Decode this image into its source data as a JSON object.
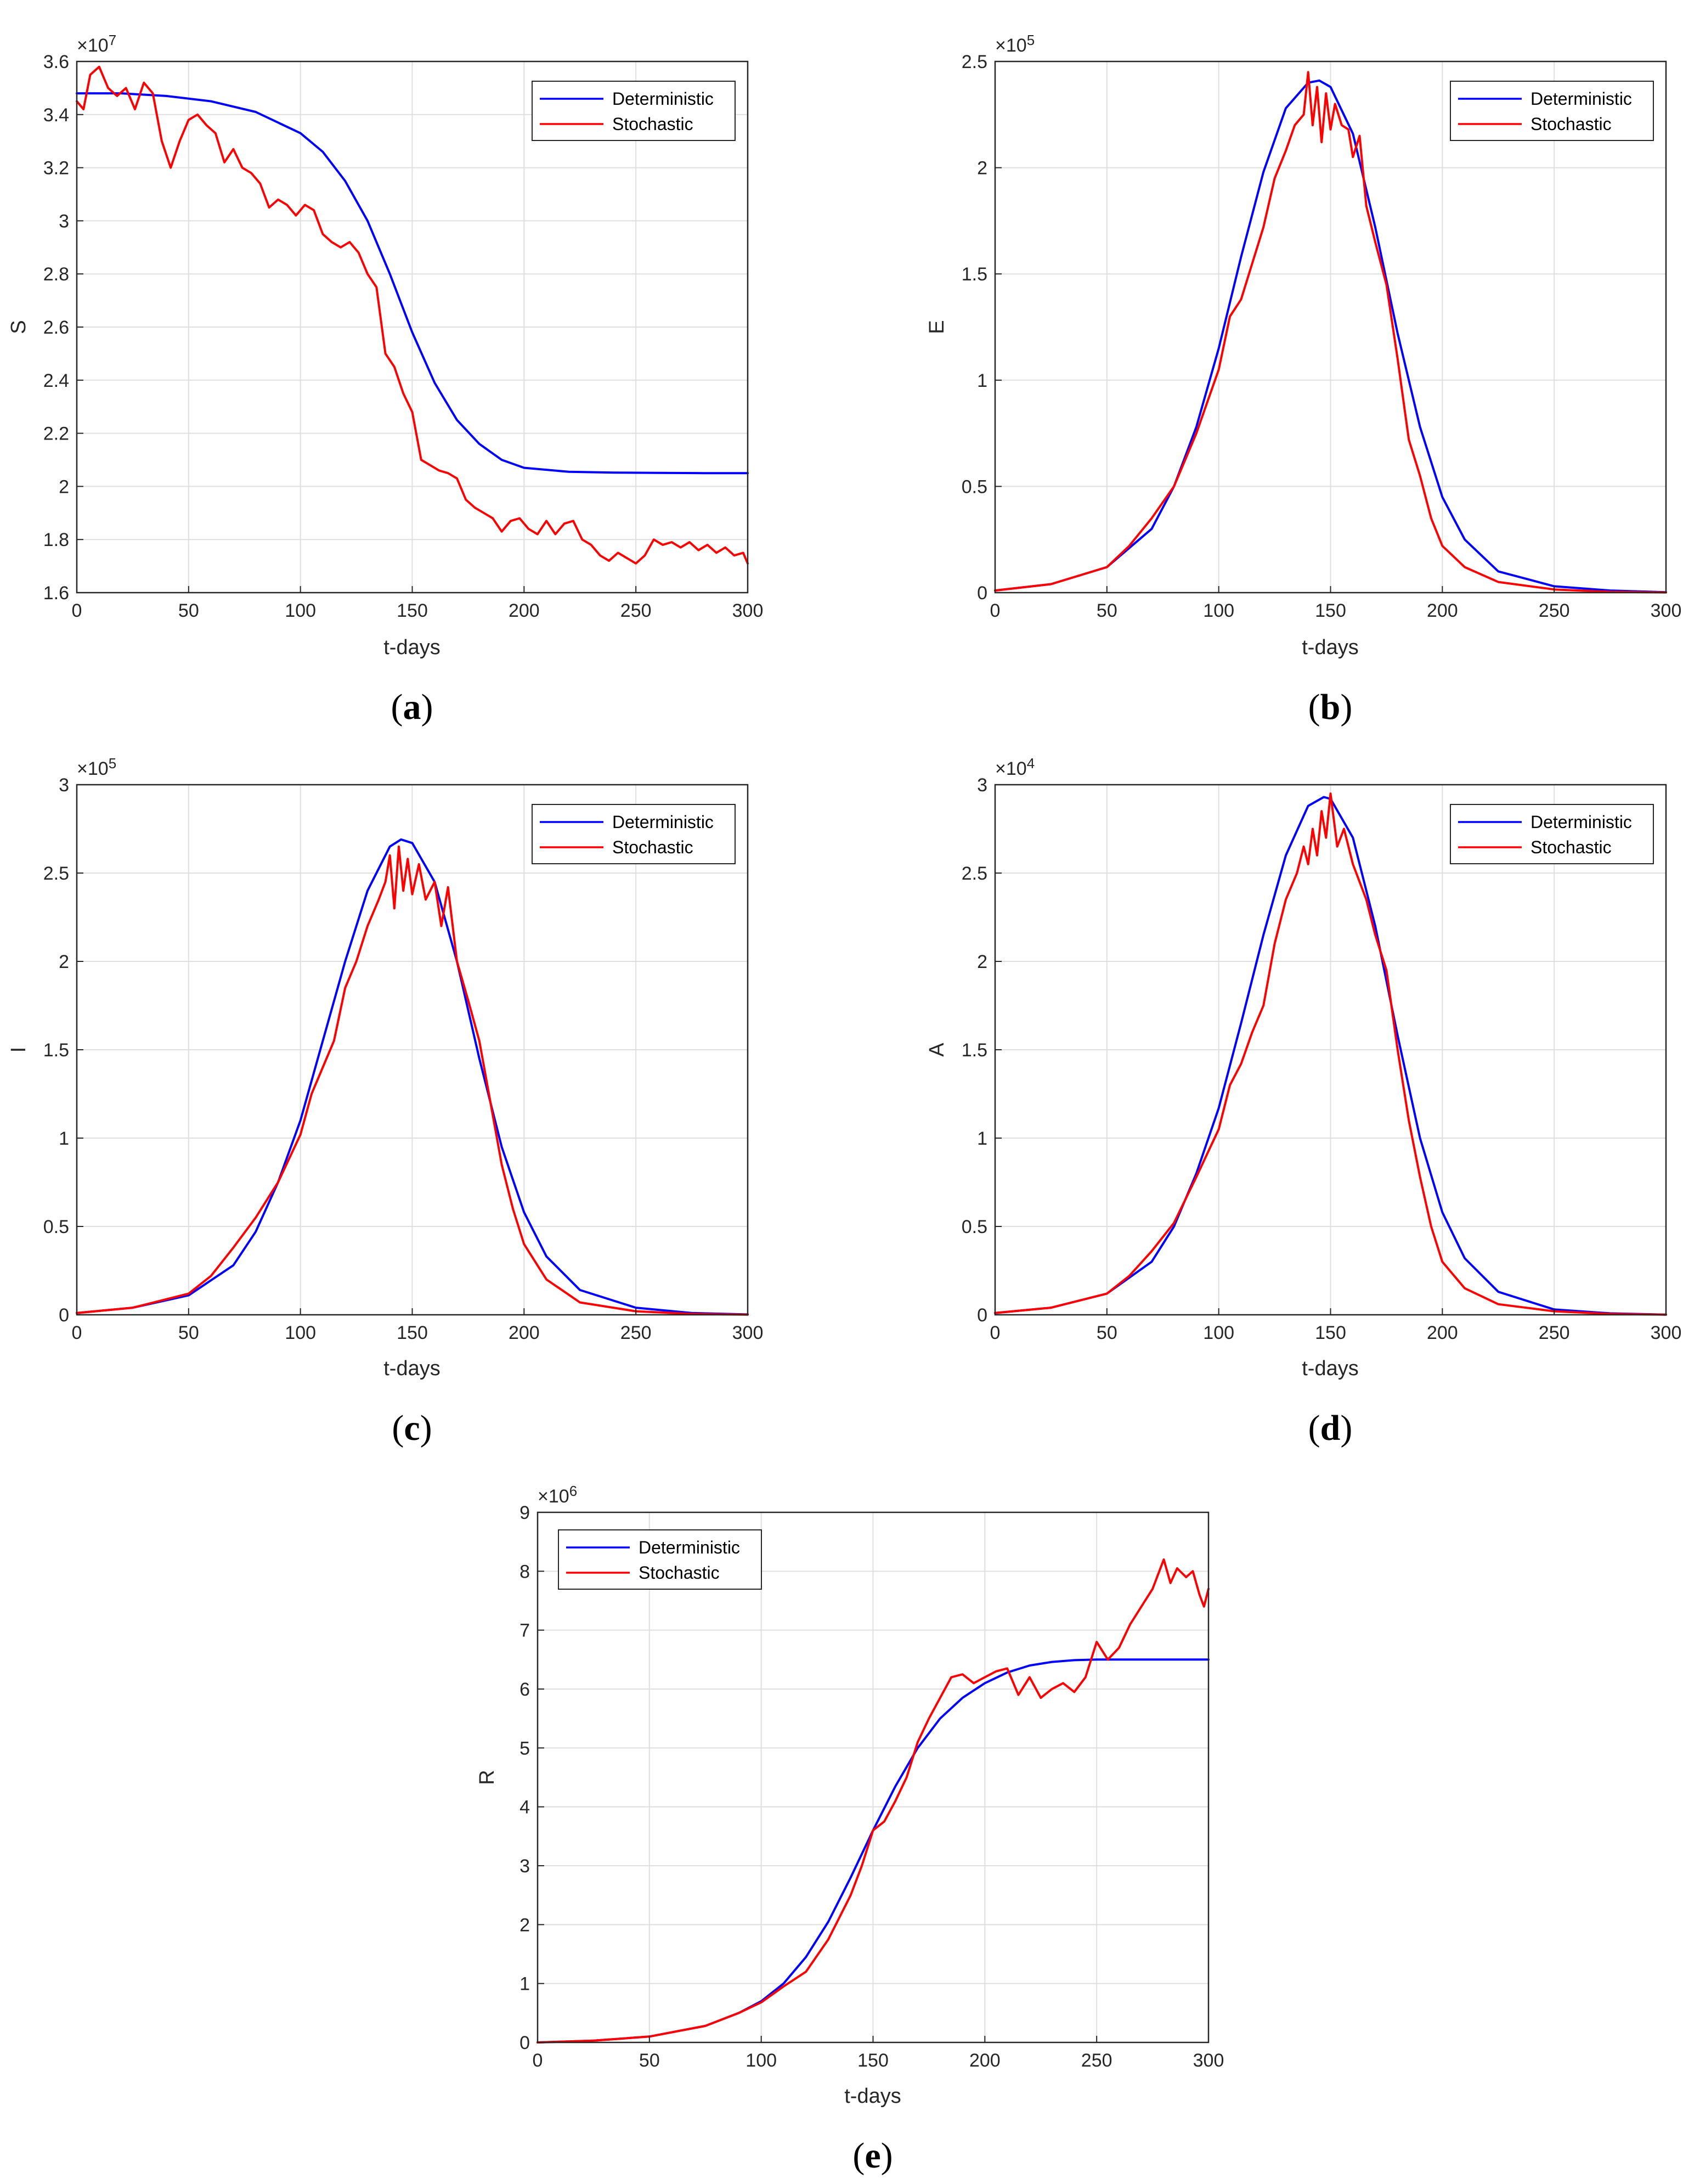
{
  "chart_data": [
    {
      "id": "a",
      "type": "line",
      "caption": "a",
      "xlabel": "t-days",
      "ylabel": "S",
      "xlim": [
        0,
        300
      ],
      "ylim": [
        1.6,
        3.6
      ],
      "xticks": [
        0,
        50,
        100,
        150,
        200,
        250,
        300
      ],
      "yticks": [
        1.6,
        1.8,
        2,
        2.2,
        2.4,
        2.6,
        2.8,
        3,
        3.2,
        3.4,
        3.6
      ],
      "exponent_base": "×10",
      "exponent": "7",
      "grid": true,
      "legend_position": "top-right",
      "series": [
        {
          "name": "Deterministic",
          "color": "#0000ff",
          "x": [
            0,
            20,
            40,
            60,
            80,
            100,
            110,
            120,
            130,
            140,
            150,
            160,
            170,
            180,
            190,
            200,
            220,
            240,
            260,
            280,
            300
          ],
          "y": [
            3.48,
            3.48,
            3.47,
            3.45,
            3.41,
            3.33,
            3.26,
            3.15,
            3.0,
            2.8,
            2.58,
            2.39,
            2.25,
            2.16,
            2.1,
            2.07,
            2.055,
            2.052,
            2.051,
            2.05,
            2.05
          ]
        },
        {
          "name": "Stochastic",
          "color": "#ff0000",
          "x": [
            0,
            3,
            6,
            10,
            14,
            18,
            22,
            26,
            30,
            34,
            38,
            42,
            46,
            50,
            54,
            58,
            62,
            66,
            70,
            74,
            78,
            82,
            86,
            90,
            94,
            98,
            102,
            106,
            110,
            114,
            118,
            122,
            126,
            130,
            134,
            138,
            142,
            146,
            150,
            154,
            158,
            162,
            166,
            170,
            174,
            178,
            182,
            186,
            190,
            194,
            198,
            202,
            206,
            210,
            214,
            218,
            222,
            226,
            230,
            234,
            238,
            242,
            246,
            250,
            254,
            258,
            262,
            266,
            270,
            274,
            278,
            282,
            286,
            290,
            294,
            298,
            300
          ],
          "y": [
            3.45,
            3.42,
            3.55,
            3.58,
            3.5,
            3.47,
            3.5,
            3.42,
            3.52,
            3.48,
            3.3,
            3.2,
            3.3,
            3.38,
            3.4,
            3.36,
            3.33,
            3.22,
            3.27,
            3.2,
            3.18,
            3.14,
            3.05,
            3.08,
            3.06,
            3.02,
            3.06,
            3.04,
            2.95,
            2.92,
            2.9,
            2.92,
            2.88,
            2.8,
            2.75,
            2.5,
            2.45,
            2.35,
            2.28,
            2.1,
            2.08,
            2.06,
            2.05,
            2.03,
            1.95,
            1.92,
            1.9,
            1.88,
            1.83,
            1.87,
            1.88,
            1.84,
            1.82,
            1.87,
            1.82,
            1.86,
            1.87,
            1.8,
            1.78,
            1.74,
            1.72,
            1.75,
            1.73,
            1.71,
            1.74,
            1.8,
            1.78,
            1.79,
            1.77,
            1.79,
            1.76,
            1.78,
            1.75,
            1.77,
            1.74,
            1.75,
            1.71
          ]
        }
      ]
    },
    {
      "id": "b",
      "type": "line",
      "caption": "b",
      "xlabel": "t-days",
      "ylabel": "E",
      "xlim": [
        0,
        300
      ],
      "ylim": [
        0,
        2.5
      ],
      "xticks": [
        0,
        50,
        100,
        150,
        200,
        250,
        300
      ],
      "yticks": [
        0,
        0.5,
        1,
        1.5,
        2,
        2.5
      ],
      "exponent_base": "×10",
      "exponent": "5",
      "grid": true,
      "legend_position": "top-right",
      "series": [
        {
          "name": "Deterministic",
          "color": "#0000ff",
          "x": [
            0,
            25,
            50,
            70,
            80,
            90,
            100,
            110,
            120,
            130,
            140,
            145,
            150,
            160,
            170,
            180,
            190,
            200,
            210,
            225,
            250,
            275,
            300
          ],
          "y": [
            0.01,
            0.04,
            0.12,
            0.3,
            0.5,
            0.78,
            1.15,
            1.58,
            1.98,
            2.28,
            2.4,
            2.41,
            2.38,
            2.16,
            1.72,
            1.22,
            0.78,
            0.45,
            0.25,
            0.1,
            0.03,
            0.01,
            0.002
          ]
        },
        {
          "name": "Stochastic",
          "color": "#ff0000",
          "x": [
            0,
            25,
            50,
            60,
            70,
            80,
            90,
            100,
            105,
            110,
            115,
            120,
            125,
            130,
            134,
            138,
            140,
            142,
            144,
            146,
            148,
            150,
            152,
            155,
            158,
            160,
            163,
            166,
            170,
            175,
            180,
            185,
            190,
            195,
            200,
            210,
            225,
            250,
            275,
            300
          ],
          "y": [
            0.01,
            0.04,
            0.12,
            0.22,
            0.35,
            0.5,
            0.75,
            1.05,
            1.3,
            1.38,
            1.55,
            1.72,
            1.95,
            2.08,
            2.2,
            2.25,
            2.45,
            2.2,
            2.38,
            2.12,
            2.35,
            2.18,
            2.3,
            2.2,
            2.18,
            2.05,
            2.15,
            1.82,
            1.65,
            1.45,
            1.1,
            0.72,
            0.55,
            0.35,
            0.22,
            0.12,
            0.05,
            0.015,
            0.004,
            0.001
          ]
        }
      ]
    },
    {
      "id": "c",
      "type": "line",
      "caption": "c",
      "xlabel": "t-days",
      "ylabel": "I",
      "xlim": [
        0,
        300
      ],
      "ylim": [
        0,
        3
      ],
      "xticks": [
        0,
        50,
        100,
        150,
        200,
        250,
        300
      ],
      "yticks": [
        0,
        0.5,
        1,
        1.5,
        2,
        2.5,
        3
      ],
      "exponent_base": "×10",
      "exponent": "5",
      "grid": true,
      "legend_position": "top-right",
      "series": [
        {
          "name": "Deterministic",
          "color": "#0000ff",
          "x": [
            0,
            25,
            50,
            70,
            80,
            90,
            100,
            110,
            120,
            130,
            140,
            145,
            150,
            160,
            170,
            180,
            190,
            200,
            210,
            225,
            250,
            275,
            300
          ],
          "y": [
            0.01,
            0.04,
            0.11,
            0.28,
            0.47,
            0.75,
            1.1,
            1.55,
            2.0,
            2.4,
            2.65,
            2.69,
            2.67,
            2.45,
            2.0,
            1.45,
            0.95,
            0.58,
            0.33,
            0.14,
            0.04,
            0.01,
            0.002
          ]
        },
        {
          "name": "Stochastic",
          "color": "#ff0000",
          "x": [
            0,
            25,
            50,
            60,
            70,
            80,
            90,
            100,
            105,
            110,
            115,
            120,
            125,
            130,
            135,
            138,
            140,
            142,
            144,
            146,
            148,
            150,
            153,
            156,
            160,
            163,
            166,
            170,
            175,
            180,
            185,
            190,
            195,
            200,
            210,
            225,
            250,
            275,
            300
          ],
          "y": [
            0.01,
            0.04,
            0.12,
            0.22,
            0.38,
            0.55,
            0.75,
            1.02,
            1.25,
            1.4,
            1.55,
            1.85,
            2.0,
            2.2,
            2.35,
            2.45,
            2.6,
            2.3,
            2.65,
            2.4,
            2.58,
            2.38,
            2.55,
            2.35,
            2.45,
            2.2,
            2.42,
            2.0,
            1.78,
            1.55,
            1.2,
            0.85,
            0.6,
            0.4,
            0.2,
            0.07,
            0.02,
            0.005,
            0.001
          ]
        }
      ]
    },
    {
      "id": "d",
      "type": "line",
      "caption": "d",
      "xlabel": "t-days",
      "ylabel": "A",
      "xlim": [
        0,
        300
      ],
      "ylim": [
        0,
        3
      ],
      "xticks": [
        0,
        50,
        100,
        150,
        200,
        250,
        300
      ],
      "yticks": [
        0,
        0.5,
        1,
        1.5,
        2,
        2.5,
        3
      ],
      "exponent_base": "×10",
      "exponent": "4",
      "grid": true,
      "legend_position": "top-right",
      "series": [
        {
          "name": "Deterministic",
          "color": "#0000ff",
          "x": [
            0,
            25,
            50,
            70,
            80,
            90,
            100,
            110,
            120,
            130,
            140,
            147,
            150,
            160,
            170,
            180,
            190,
            200,
            210,
            225,
            250,
            275,
            300
          ],
          "y": [
            0.01,
            0.04,
            0.12,
            0.3,
            0.5,
            0.8,
            1.17,
            1.65,
            2.15,
            2.6,
            2.88,
            2.93,
            2.92,
            2.7,
            2.2,
            1.58,
            1.0,
            0.58,
            0.32,
            0.13,
            0.03,
            0.008,
            0.001
          ]
        },
        {
          "name": "Stochastic",
          "color": "#ff0000",
          "x": [
            0,
            25,
            50,
            60,
            70,
            80,
            90,
            100,
            105,
            110,
            115,
            120,
            125,
            130,
            135,
            138,
            140,
            142,
            144,
            146,
            148,
            150,
            153,
            156,
            160,
            163,
            166,
            170,
            175,
            180,
            185,
            190,
            195,
            200,
            210,
            225,
            250,
            275,
            300
          ],
          "y": [
            0.01,
            0.04,
            0.12,
            0.22,
            0.36,
            0.52,
            0.78,
            1.05,
            1.3,
            1.42,
            1.6,
            1.75,
            2.1,
            2.35,
            2.5,
            2.65,
            2.55,
            2.75,
            2.6,
            2.85,
            2.7,
            2.95,
            2.65,
            2.75,
            2.55,
            2.45,
            2.35,
            2.15,
            1.95,
            1.5,
            1.1,
            0.78,
            0.5,
            0.3,
            0.15,
            0.06,
            0.02,
            0.005,
            0.001
          ]
        }
      ]
    },
    {
      "id": "e",
      "type": "line",
      "caption": "e",
      "xlabel": "t-days",
      "ylabel": "R",
      "xlim": [
        0,
        300
      ],
      "ylim": [
        0,
        9
      ],
      "xticks": [
        0,
        50,
        100,
        150,
        200,
        250,
        300
      ],
      "yticks": [
        0,
        1,
        2,
        3,
        4,
        5,
        6,
        7,
        8,
        9
      ],
      "exponent_base": "×10",
      "exponent": "6",
      "grid": true,
      "legend_position": "top-left",
      "series": [
        {
          "name": "Deterministic",
          "color": "#0000ff",
          "x": [
            0,
            25,
            50,
            75,
            90,
            100,
            110,
            120,
            130,
            140,
            150,
            160,
            170,
            180,
            190,
            200,
            210,
            220,
            230,
            240,
            250,
            300
          ],
          "y": [
            0.0,
            0.03,
            0.1,
            0.28,
            0.5,
            0.7,
            1.0,
            1.45,
            2.05,
            2.8,
            3.6,
            4.35,
            5.0,
            5.5,
            5.85,
            6.1,
            6.28,
            6.4,
            6.46,
            6.49,
            6.5,
            6.5
          ]
        },
        {
          "name": "Stochastic",
          "color": "#ff0000",
          "x": [
            0,
            25,
            50,
            75,
            90,
            100,
            110,
            120,
            130,
            140,
            145,
            150,
            155,
            160,
            165,
            170,
            175,
            180,
            185,
            190,
            195,
            200,
            205,
            210,
            215,
            220,
            225,
            230,
            235,
            240,
            245,
            250,
            255,
            260,
            265,
            270,
            275,
            280,
            283,
            286,
            290,
            293,
            296,
            298,
            300
          ],
          "y": [
            0.0,
            0.03,
            0.1,
            0.28,
            0.5,
            0.68,
            0.95,
            1.2,
            1.75,
            2.5,
            3.0,
            3.6,
            3.75,
            4.1,
            4.5,
            5.1,
            5.5,
            5.85,
            6.2,
            6.25,
            6.1,
            6.2,
            6.3,
            6.35,
            5.9,
            6.2,
            5.85,
            6.0,
            6.1,
            5.95,
            6.2,
            6.8,
            6.5,
            6.7,
            7.1,
            7.4,
            7.7,
            8.2,
            7.8,
            8.05,
            7.9,
            8.0,
            7.6,
            7.4,
            7.7
          ]
        }
      ]
    }
  ]
}
